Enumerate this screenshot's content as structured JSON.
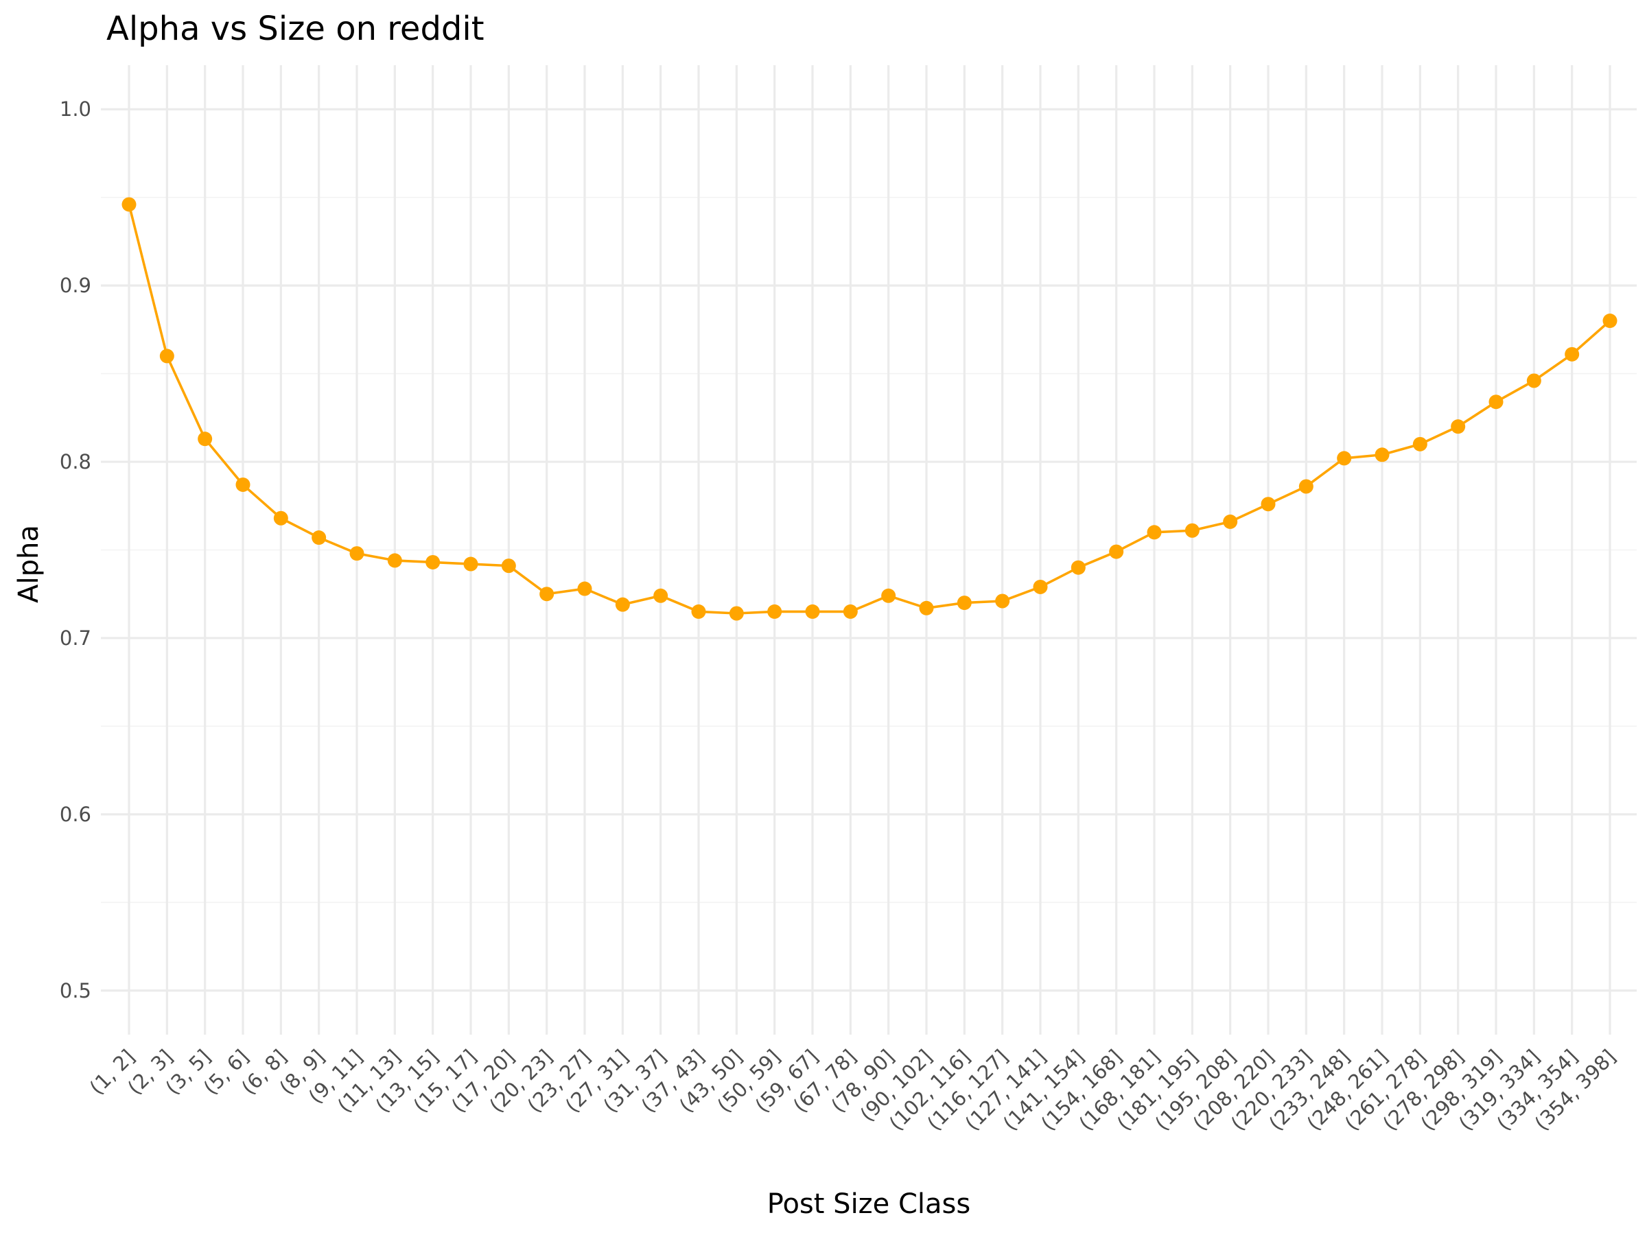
{
  "chart_data": {
    "type": "line",
    "title": "Alpha vs Size on reddit",
    "xlabel": "Post Size Class",
    "ylabel": "Alpha",
    "ylim": [
      0.5,
      1.0
    ],
    "yticks": [
      "0.5",
      "0.6",
      "0.7",
      "0.8",
      "0.9",
      "1.0"
    ],
    "ytick_values": [
      0.5,
      0.6,
      0.7,
      0.8,
      0.9,
      1.0
    ],
    "grid": true,
    "colors": {
      "series": "#FFA500",
      "grid_major": "#ebebeb",
      "grid_minor": "#f3f3f3"
    },
    "categories": [
      "(1, 2]",
      "(2, 3]",
      "(3, 5]",
      "(5, 6]",
      "(6, 8]",
      "(8, 9]",
      "(9, 11]",
      "(11, 13]",
      "(13, 15]",
      "(15, 17]",
      "(17, 20]",
      "(20, 23]",
      "(23, 27]",
      "(27, 31]",
      "(31, 37]",
      "(37, 43]",
      "(43, 50]",
      "(50, 59]",
      "(59, 67]",
      "(67, 78]",
      "(78, 90]",
      "(90, 102]",
      "(102, 116]",
      "(116, 127]",
      "(127, 141]",
      "(141, 154]",
      "(154, 168]",
      "(168, 181]",
      "(181, 195]",
      "(195, 208]",
      "(208, 220]",
      "(220, 233]",
      "(233, 248]",
      "(248, 261]",
      "(261, 278]",
      "(278, 298]",
      "(298, 319]",
      "(319, 334]",
      "(334, 354]",
      "(354, 398]"
    ],
    "series": [
      {
        "values": [
          0.946,
          0.86,
          0.813,
          0.787,
          0.768,
          0.757,
          0.748,
          0.744,
          0.743,
          0.742,
          0.741,
          0.725,
          0.728,
          0.719,
          0.724,
          0.715,
          0.714,
          0.715,
          0.715,
          0.715,
          0.724,
          0.717,
          0.72,
          0.721,
          0.729,
          0.74,
          0.749,
          0.76,
          0.761,
          0.766,
          0.776,
          0.786,
          0.802,
          0.804,
          0.81,
          0.82,
          0.834,
          0.846,
          0.861,
          0.88
        ]
      }
    ]
  }
}
